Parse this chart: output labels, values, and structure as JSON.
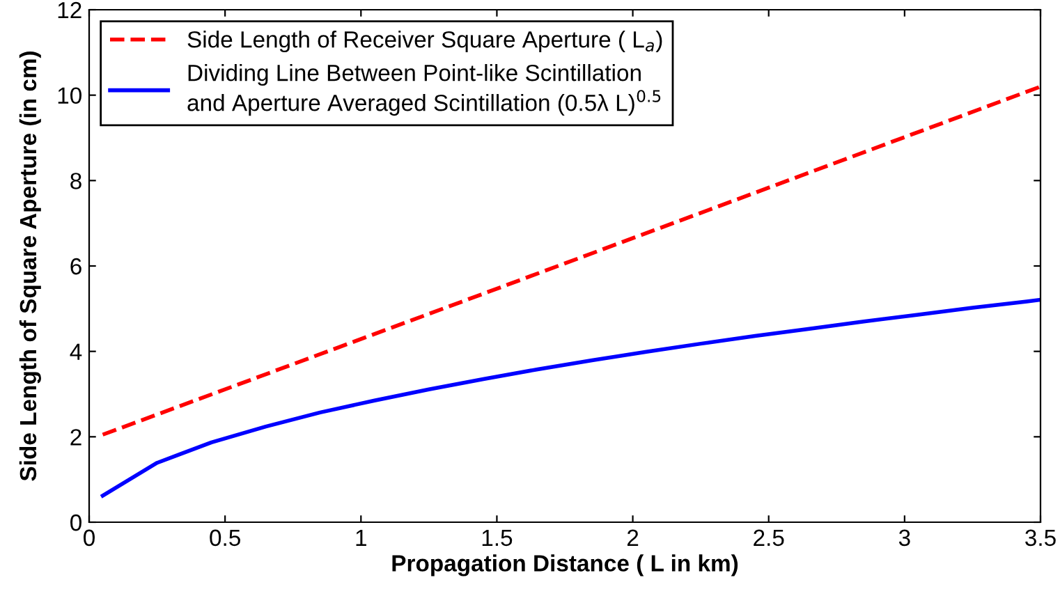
{
  "chart_data": {
    "type": "line",
    "xlabel": "Propagation Distance ( L in km)",
    "ylabel": "Side Length of Square Aperture (in cm)",
    "xlim": [
      0,
      3.5
    ],
    "xticks": [
      0,
      0.5,
      1,
      1.5,
      2,
      2.5,
      3,
      3.5
    ],
    "ylim": [
      0,
      12
    ],
    "yticks": [
      0,
      2,
      4,
      6,
      8,
      10,
      12
    ],
    "grid": false,
    "legend": "top left",
    "marker": "none",
    "series": [
      {
        "name": "Side Length of Receiver Square Aperture ( L$_{a}$)",
        "color": "#ff0000",
        "line_style": "dashed",
        "x": [
          0.05,
          1.45,
          3.5
        ],
        "values": [
          2.05,
          5.35,
          10.2
        ]
      },
      {
        "name": "Dividing Line Between Point-like Scintillation\nand Aperture Averaged Scintillation (0.5λ L)$^{0.5}$",
        "color": "#0000ff",
        "line_style": "solid",
        "x": [
          0.05,
          0.25,
          0.45,
          0.65,
          0.85,
          1.05,
          1.25,
          1.45,
          1.65,
          1.85,
          2.05,
          2.25,
          2.45,
          2.65,
          2.85,
          3.05,
          3.25,
          3.45,
          3.5
        ],
        "values": [
          0.62,
          1.39,
          1.87,
          2.24,
          2.57,
          2.85,
          3.11,
          3.35,
          3.58,
          3.79,
          3.99,
          4.18,
          4.36,
          4.53,
          4.7,
          4.86,
          5.02,
          5.17,
          5.21
        ]
      }
    ]
  }
}
